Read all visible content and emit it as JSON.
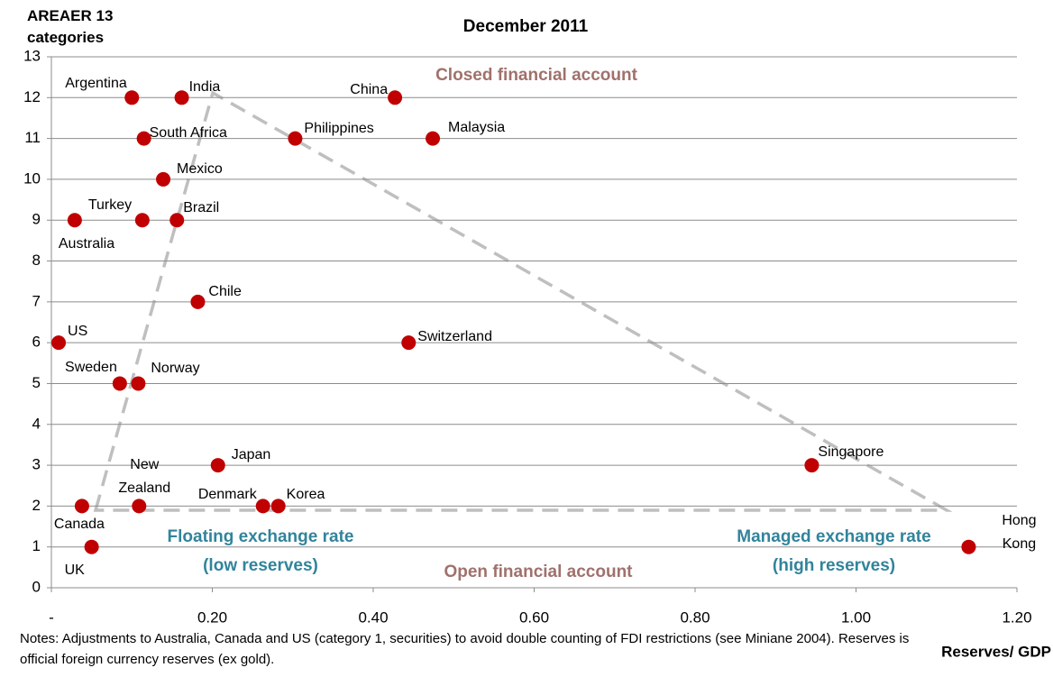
{
  "chart_data": {
    "type": "scatter",
    "title": "December 2011",
    "y_label": "AREAER 13 categories",
    "x_label": "Reserves/ GDP",
    "notes": "Notes: Adjustments to Australia, Canada and US (category 1, securities) to avoid double counting of FDI restrictions (see Miniane 2004). Reserves is official foreign currency reserves (ex gold).",
    "xlim": [
      0,
      1.2
    ],
    "ylim": [
      0,
      13
    ],
    "xticks": [
      {
        "value": 0,
        "label": "-"
      },
      {
        "value": 0.2,
        "label": "0.20"
      },
      {
        "value": 0.4,
        "label": "0.40"
      },
      {
        "value": 0.6,
        "label": "0.60"
      },
      {
        "value": 0.8,
        "label": "0.80"
      },
      {
        "value": 1,
        "label": "1.00"
      },
      {
        "value": 1.2,
        "label": "1.20"
      }
    ],
    "yticks": [
      0,
      1,
      2,
      3,
      4,
      5,
      6,
      7,
      8,
      9,
      10,
      11,
      12,
      13
    ],
    "grid": true,
    "series": [
      {
        "color": "#c00000",
        "labels": [
          "Argentina",
          "India",
          "China",
          "South Africa",
          "Philippines",
          "Malaysia",
          "Mexico",
          "Australia",
          "Turkey",
          "Brazil",
          "Chile",
          "US",
          "Switzerland",
          "Sweden",
          "Norway",
          "Japan",
          "Singapore",
          "Canada",
          "New Zealand",
          "Denmark",
          "Korea",
          "UK",
          "Hong Kong"
        ],
        "x": [
          0.1,
          0.162,
          0.427,
          0.115,
          0.303,
          0.474,
          0.139,
          0.029,
          0.113,
          0.156,
          0.182,
          0.009,
          0.444,
          0.085,
          0.108,
          0.207,
          0.945,
          0.038,
          0.109,
          0.263,
          0.282,
          0.05,
          1.14
        ],
        "values": [
          12,
          12,
          12,
          11,
          11,
          11,
          10,
          9,
          9,
          9,
          7,
          6,
          6,
          5,
          5,
          3,
          3,
          2,
          2,
          2,
          2,
          1,
          1
        ]
      }
    ],
    "annotations": [
      "Closed financial account",
      "Floating exchange rate",
      "(low reserves)",
      "Managed exchange rate",
      "(high reserves)",
      "Open financial account"
    ]
  }
}
